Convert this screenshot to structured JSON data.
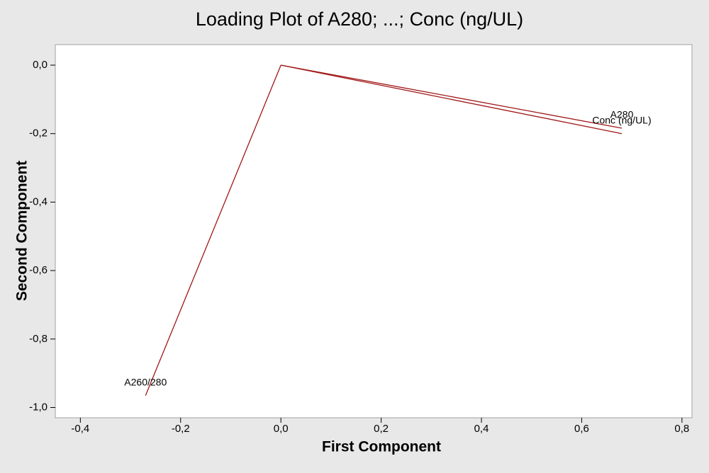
{
  "chart_data": {
    "type": "loading",
    "title": "Loading Plot of A280; ...; Conc (ng/UL)",
    "x_label": "First Component",
    "y_label": "Second Component",
    "series": [
      {
        "color": "#a01818",
        "labels": [
          "A280",
          "A260/280",
          "Conc (ng/UL)"
        ],
        "x": [
          0.68,
          -0.27,
          0.68
        ],
        "values": [
          -0.184,
          -0.965,
          -0.2
        ]
      }
    ],
    "xlim": [
      -0.45,
      0.82
    ],
    "xticks": [
      {
        "value": -0.4,
        "label": "-0,4"
      },
      {
        "value": -0.2,
        "label": "-0,2"
      },
      {
        "value": 0,
        "label": "0,0"
      },
      {
        "value": 0.2,
        "label": "0,2"
      },
      {
        "value": 0.4,
        "label": "0,4"
      },
      {
        "value": 0.6,
        "label": "0,6"
      },
      {
        "value": 0.8,
        "label": "0,8"
      }
    ],
    "ylim": [
      -1.03,
      0.06
    ],
    "yticks": [
      {
        "value": 0,
        "label": "0,0"
      },
      {
        "value": -0.2,
        "label": "-0,2"
      },
      {
        "value": -0.4,
        "label": "-0,4"
      },
      {
        "value": -0.6,
        "label": "-0,6"
      },
      {
        "value": -0.8,
        "label": "-0,8"
      },
      {
        "value": -1.0,
        "label": "-1,0"
      }
    ],
    "grid": false
  }
}
